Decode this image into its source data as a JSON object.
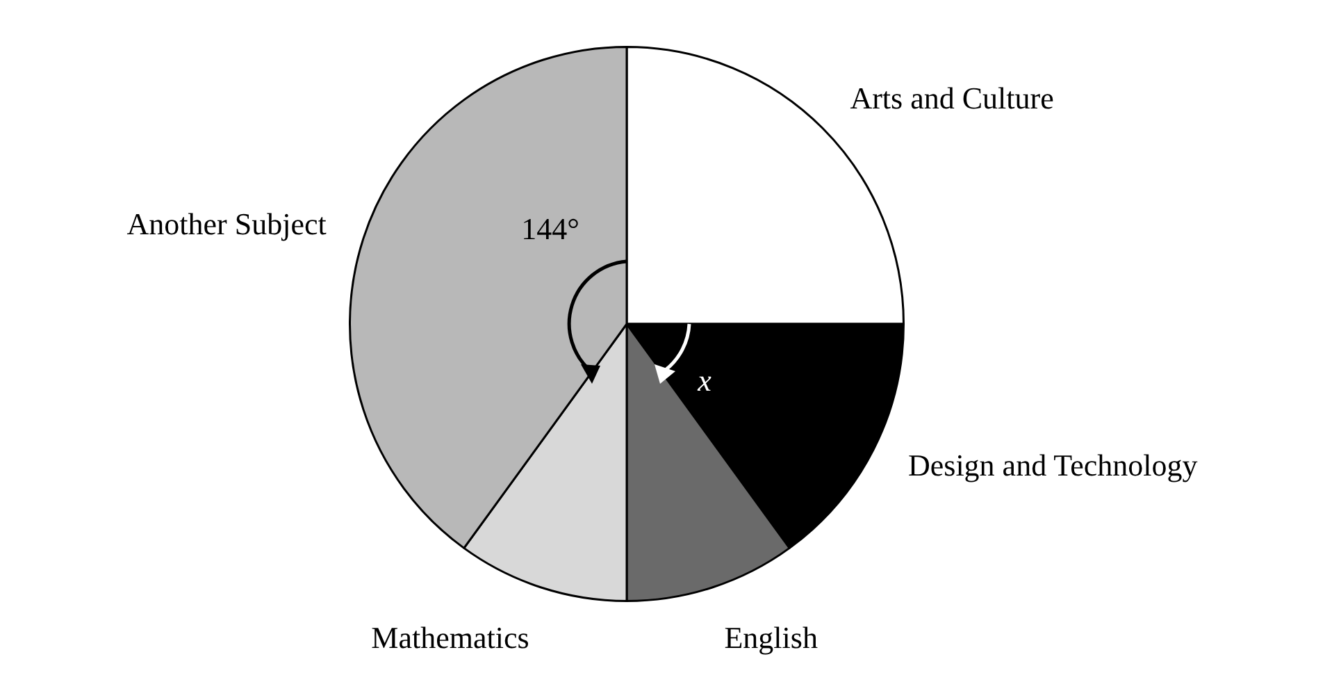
{
  "chart_data": {
    "type": "pie",
    "categories": [
      "Arts and Culture",
      "Design and Technology",
      "English",
      "Mathematics",
      "Another Subject"
    ],
    "values": [
      25,
      15,
      10,
      10,
      40
    ],
    "colors": [
      "#ffffff",
      "#000000",
      "#6a6a6a",
      "#d8d8d8",
      "#b8b8b8"
    ],
    "annotations": [
      "144°",
      "x"
    ],
    "legend": false
  }
}
